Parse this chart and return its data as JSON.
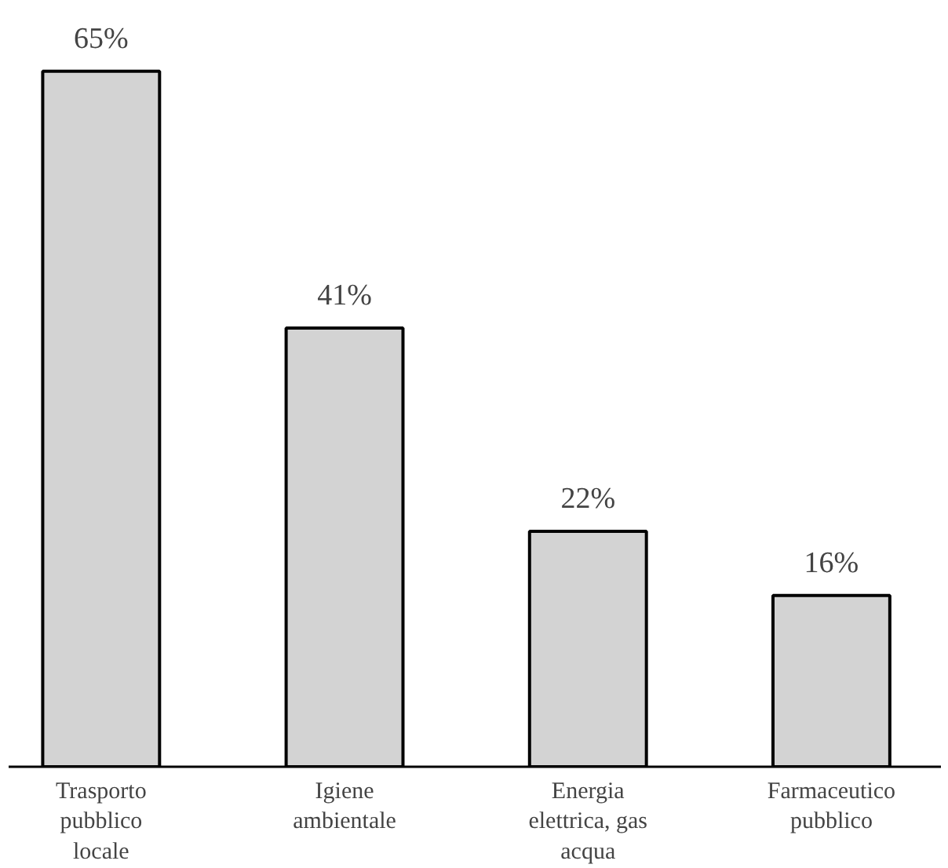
{
  "chart_data": {
    "type": "bar",
    "categories": [
      "Trasporto\npubblico\nlocale",
      "Igiene\nambientale",
      "Energia\nelettrica, gas\nacqua",
      "Farmaceutico\npubblico"
    ],
    "values": [
      65,
      41,
      22,
      16
    ],
    "color": "#d3d3d3",
    "value_labels": [
      "65%",
      "41%",
      "22%",
      "16%"
    ]
  }
}
